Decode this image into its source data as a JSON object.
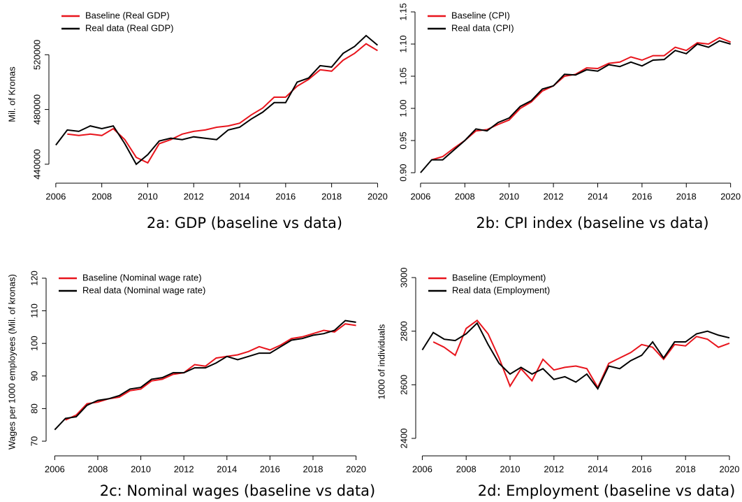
{
  "chart_data": [
    {
      "type": "line",
      "caption": "2a: GDP (baseline vs data)",
      "y_label": "Mil. of Kronas",
      "legend": "upper left",
      "x": [
        2006,
        2006.5,
        2007,
        2007.5,
        2008,
        2008.5,
        2009,
        2009.5,
        2010,
        2010.5,
        2011,
        2011.5,
        2012,
        2012.5,
        2013,
        2013.5,
        2014,
        2014.5,
        2015,
        2015.5,
        2016,
        2016.5,
        2017,
        2017.5,
        2018,
        2018.5,
        2019,
        2019.5,
        2020
      ],
      "series": [
        {
          "name": "Baseline (Real GDP)",
          "color": "#e8141c",
          "values": [
            null,
            462000,
            461000,
            462000,
            461000,
            466000,
            458000,
            445000,
            441000,
            455000,
            458000,
            462000,
            464000,
            465000,
            467000,
            468000,
            470000,
            476000,
            481000,
            489000,
            489000,
            497000,
            502000,
            509000,
            508000,
            516000,
            521000,
            528000,
            523000
          ]
        },
        {
          "name": "Real data (Real GDP)",
          "color": "#000000",
          "values": [
            454000,
            465000,
            464000,
            468000,
            466000,
            468000,
            455000,
            440000,
            447000,
            457000,
            459000,
            458000,
            460000,
            459000,
            458000,
            465000,
            467000,
            473000,
            478000,
            485000,
            485000,
            500000,
            503000,
            512000,
            511000,
            521000,
            526000,
            534000,
            527000
          ]
        }
      ],
      "xlim": [
        2005.7,
        2020.2
      ],
      "xticks": [
        2006,
        2008,
        2010,
        2012,
        2014,
        2016,
        2018,
        2020
      ],
      "ylim": [
        426150,
        555900
      ],
      "yticks": [
        440000,
        480000,
        520000
      ]
    },
    {
      "type": "line",
      "caption": "2b: CPI index (baseline vs data)",
      "legend": "upper left",
      "x": [
        2006,
        2006.5,
        2007,
        2007.5,
        2008,
        2008.5,
        2009,
        2009.5,
        2010,
        2010.5,
        2011,
        2011.5,
        2012,
        2012.5,
        2013,
        2013.5,
        2014,
        2014.5,
        2015,
        2015.5,
        2016,
        2016.5,
        2017,
        2017.5,
        2018,
        2018.5,
        2019,
        2019.5,
        2020
      ],
      "series": [
        {
          "name": "Baseline (CPI)",
          "color": "#e8141c",
          "values": [
            null,
            0.92,
            0.925,
            0.938,
            0.95,
            0.965,
            0.967,
            0.975,
            0.982,
            1.0,
            1.01,
            1.027,
            1.035,
            1.05,
            1.053,
            1.063,
            1.062,
            1.07,
            1.072,
            1.08,
            1.075,
            1.082,
            1.082,
            1.095,
            1.09,
            1.102,
            1.1,
            1.11,
            1.103
          ]
        },
        {
          "name": "Real data (CPI)",
          "color": "#000000",
          "values": [
            0.9,
            0.92,
            0.92,
            0.935,
            0.95,
            0.968,
            0.965,
            0.978,
            0.985,
            1.003,
            1.012,
            1.03,
            1.035,
            1.053,
            1.052,
            1.06,
            1.058,
            1.068,
            1.065,
            1.072,
            1.066,
            1.075,
            1.076,
            1.09,
            1.085,
            1.1,
            1.095,
            1.105,
            1.1
          ]
        }
      ],
      "xlim": [
        2005.75,
        2020.2
      ],
      "xticks": [
        2006,
        2008,
        2010,
        2012,
        2014,
        2016,
        2018,
        2020
      ],
      "ylim": [
        0.8837,
        1.1598
      ],
      "yticks": [
        {
          "value": 0.9,
          "label": "0.90"
        },
        {
          "value": 0.95,
          "label": "0.95"
        },
        {
          "value": 1,
          "label": "1.00"
        },
        {
          "value": 1.05,
          "label": "1.05"
        },
        {
          "value": 1.1,
          "label": "1.10"
        },
        {
          "value": 1.15,
          "label": "1.15"
        }
      ]
    },
    {
      "type": "line",
      "caption": "2c: Nominal wages (baseline vs data)",
      "y_label": "Wages per 1000 employees (Mil. of kronas)",
      "legend": "upper left",
      "x": [
        2006,
        2006.5,
        2007,
        2007.5,
        2008,
        2008.5,
        2009,
        2009.5,
        2010,
        2010.5,
        2011,
        2011.5,
        2012,
        2012.5,
        2013,
        2013.5,
        2014,
        2014.5,
        2015,
        2015.5,
        2016,
        2016.5,
        2017,
        2017.5,
        2018,
        2018.5,
        2019,
        2019.5,
        2020
      ],
      "series": [
        {
          "name": "Baseline (Nominal wage rate)",
          "color": "#e8141c",
          "values": [
            null,
            76.5,
            78,
            81.5,
            82,
            83,
            83.5,
            85.5,
            86,
            88.5,
            89,
            90.5,
            91,
            93.5,
            93,
            95.5,
            96,
            96.5,
            97.5,
            99,
            98,
            99.5,
            101.5,
            102,
            103,
            104,
            103.5,
            106,
            105.5
          ]
        },
        {
          "name": "Real data (Nominal wage rate)",
          "color": "#000000",
          "values": [
            73.5,
            77,
            77.5,
            81,
            82.5,
            83,
            84,
            86,
            86.5,
            89,
            89.5,
            91,
            91,
            92.5,
            92.5,
            94,
            96,
            95,
            96,
            97,
            97,
            99,
            101,
            101.5,
            102.5,
            103,
            104,
            107,
            106.5
          ]
        }
      ],
      "xlim": [
        2005.6,
        2020.5
      ],
      "xticks": [
        2006,
        2008,
        2010,
        2012,
        2014,
        2016,
        2018,
        2020
      ],
      "ylim": [
        65.5,
        123.2
      ],
      "yticks": [
        70,
        80,
        90,
        100,
        110,
        120
      ]
    },
    {
      "type": "line",
      "caption": "2d: Employment (baseline vs data)",
      "y_label": "1000 of individuals",
      "legend": "upper left",
      "x": [
        2006,
        2006.5,
        2007,
        2007.5,
        2008,
        2008.5,
        2009,
        2009.5,
        2010,
        2010.5,
        2011,
        2011.5,
        2012,
        2012.5,
        2013,
        2013.5,
        2014,
        2014.5,
        2015,
        2015.5,
        2016,
        2016.5,
        2017,
        2017.5,
        2018,
        2018.5,
        2019,
        2019.5,
        2020
      ],
      "series": [
        {
          "name": "Baseline (Employment)",
          "color": "#e8141c",
          "values": [
            null,
            2760,
            2740,
            2710,
            2810,
            2840,
            2790,
            2700,
            2595,
            2660,
            2615,
            2695,
            2655,
            2665,
            2670,
            2660,
            2590,
            2680,
            2700,
            2720,
            2750,
            2740,
            2695,
            2750,
            2745,
            2780,
            2770,
            2740,
            2755
          ]
        },
        {
          "name": "Real data (Employment)",
          "color": "#000000",
          "values": [
            2730,
            2795,
            2770,
            2765,
            2790,
            2830,
            2750,
            2680,
            2640,
            2665,
            2640,
            2660,
            2620,
            2630,
            2610,
            2640,
            2585,
            2670,
            2660,
            2690,
            2710,
            2760,
            2700,
            2760,
            2760,
            2790,
            2800,
            2785,
            2775
          ]
        }
      ],
      "xlim": [
        2005.7,
        2020.35
      ],
      "xticks": [
        2006,
        2008,
        2010,
        2012,
        2014,
        2016,
        2018,
        2020
      ],
      "ylim": [
        2334.8,
        3036.5
      ],
      "yticks": [
        2400,
        2600,
        2800,
        3000
      ]
    }
  ]
}
